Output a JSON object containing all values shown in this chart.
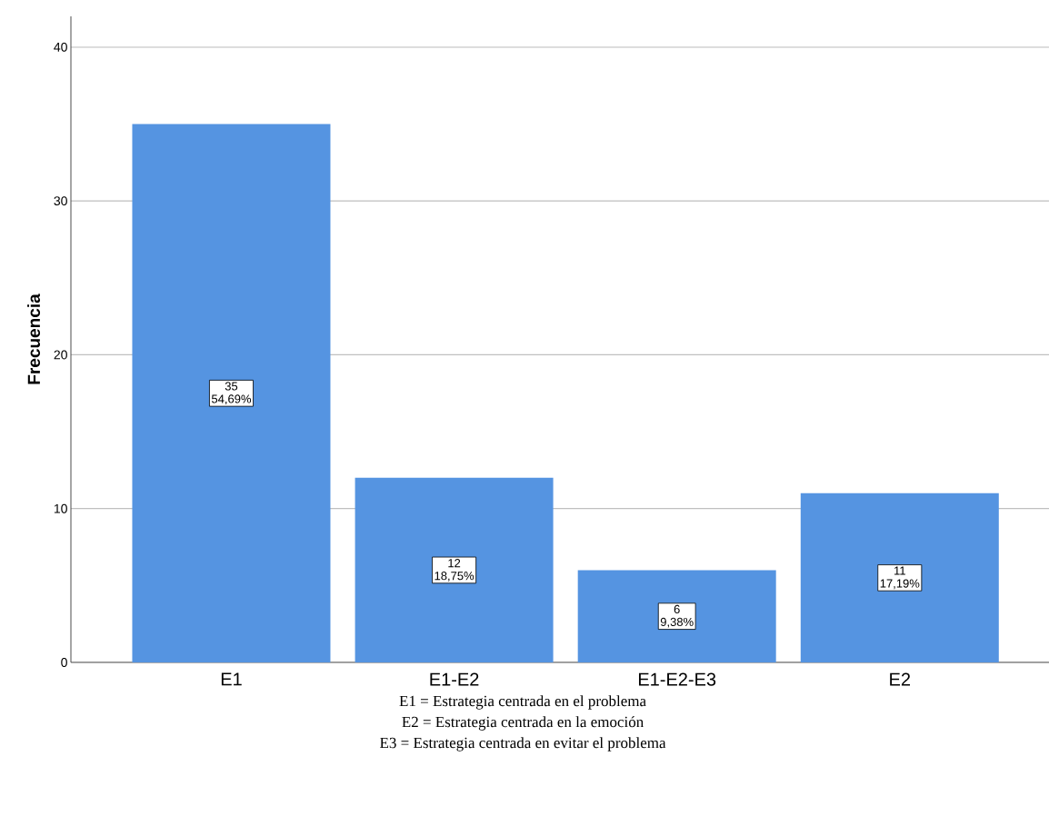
{
  "chart_data": {
    "type": "bar",
    "ylabel": "Frecuencia",
    "categories": [
      "E1",
      "E1-E2",
      "E1-E2-E3",
      "E2"
    ],
    "values": [
      35,
      12,
      6,
      11
    ],
    "value_labels": [
      "35",
      "12",
      "6",
      "11"
    ],
    "color": "#5594e1",
    "ylim": [
      0,
      42
    ],
    "yticks": [
      0,
      10,
      20,
      30,
      40
    ],
    "grid": "y",
    "annotations": [
      "54,69%",
      "18,75%",
      "9,38%",
      "17,19%",
      "E1 = Estrategia centrada en el problema",
      "E2 = Estrategia centrada en la emoción",
      "E3 = Estrategia centrada en evitar el problema"
    ]
  }
}
